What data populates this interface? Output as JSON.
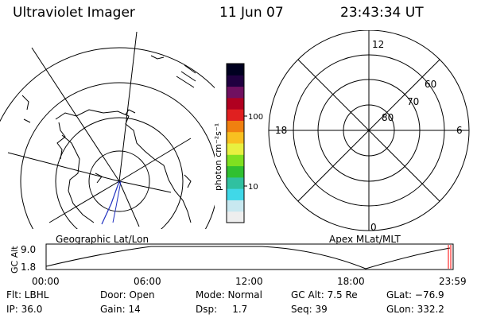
{
  "header": {
    "instrument": "Ultraviolet Imager",
    "date": "11 Jun 07",
    "time": "23:43:34 UT"
  },
  "left_panel": {
    "label": "Geographic Lat/Lon"
  },
  "right_panel": {
    "label": "Apex MLat/MLT",
    "mlt_labels": [
      "12",
      "18",
      "6",
      "0"
    ],
    "mlat_labels": [
      "60",
      "70",
      "80"
    ]
  },
  "colorbar": {
    "unit_label": "photon cm⁻²s⁻¹",
    "ticks": [
      "100",
      "10"
    ],
    "scale": "log",
    "colors": [
      "#eeeeee",
      "#c8e8f0",
      "#40d8e8",
      "#30c0a0",
      "#30c030",
      "#80e020",
      "#e8f040",
      "#f8c020",
      "#f08010",
      "#e02020",
      "#b00020",
      "#701060",
      "#200040",
      "#000020"
    ]
  },
  "altitude_strip": {
    "axis_label": "GC Alt",
    "yticks": [
      "9.0",
      "1.8"
    ],
    "xticks": [
      "00:00",
      "06:00",
      "12:00",
      "18:00",
      "23:59"
    ],
    "marker_color": "#ff0000"
  },
  "info": {
    "row1": [
      "Flt: LBHL",
      "Door: Open",
      "Mode: Normal",
      "GC Alt: 7.5 Re",
      "GLat: −76.9"
    ],
    "row2": [
      "IP: 36.0",
      "Gain: 14",
      "Dsp:     1.7",
      "Seq: 39",
      "GLon: 332.2"
    ]
  }
}
